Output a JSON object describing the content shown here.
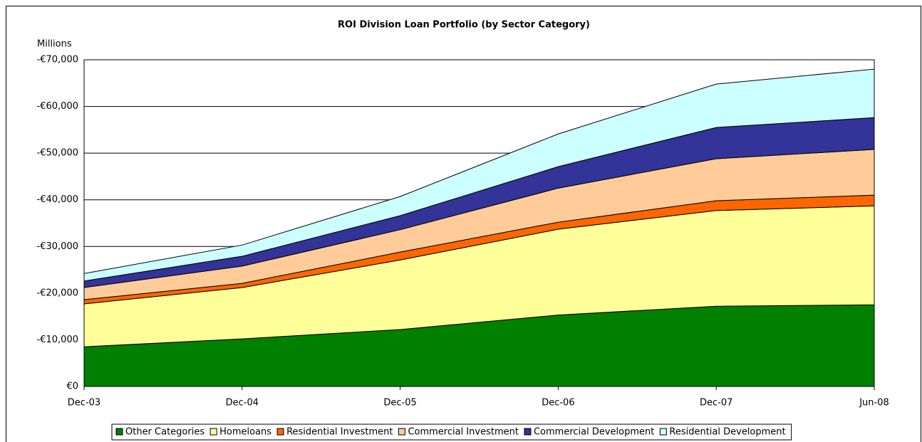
{
  "chart_data": {
    "type": "stacked_area",
    "title": "ROI Division Loan Portfolio (by Sector Category)",
    "y_label": "Millions",
    "categories": [
      "Dec-03",
      "Dec-04",
      "Dec-05",
      "Dec-06",
      "Dec-07",
      "Jun-08"
    ],
    "series": [
      {
        "name": "Other Categories",
        "color": "#008000",
        "values": [
          8500,
          10200,
          12200,
          15300,
          17200,
          17500
        ]
      },
      {
        "name": "Homeloans",
        "color": "#ffff99",
        "values": [
          9200,
          11000,
          14900,
          18400,
          20500,
          21200
        ]
      },
      {
        "name": "Residential Investment",
        "color": "#ff6600",
        "values": [
          900,
          900,
          1700,
          1500,
          2100,
          2300
        ]
      },
      {
        "name": "Commercial Investment",
        "color": "#ffcc99",
        "values": [
          2600,
          3700,
          4800,
          7300,
          9000,
          9800
        ]
      },
      {
        "name": "Commercial Development",
        "color": "#333399",
        "values": [
          1400,
          2100,
          3000,
          4600,
          6700,
          6800
        ]
      },
      {
        "name": "Residential Development",
        "color": "#ccffff",
        "values": [
          1600,
          2400,
          4100,
          7000,
          9300,
          10400
        ]
      }
    ],
    "ylim": [
      0,
      70000
    ],
    "yticks": [
      {
        "value": 0,
        "label": "€0"
      },
      {
        "value": 10000,
        "label": "-€10,000"
      },
      {
        "value": 20000,
        "label": "-€20,000"
      },
      {
        "value": 30000,
        "label": "-€30,000"
      },
      {
        "value": 40000,
        "label": "-€40,000"
      },
      {
        "value": 50000,
        "label": "-€50,000"
      },
      {
        "value": 60000,
        "label": "-€60,000"
      },
      {
        "value": 70000,
        "label": "-€70,000"
      }
    ],
    "grid": true,
    "legend": "bottom"
  }
}
